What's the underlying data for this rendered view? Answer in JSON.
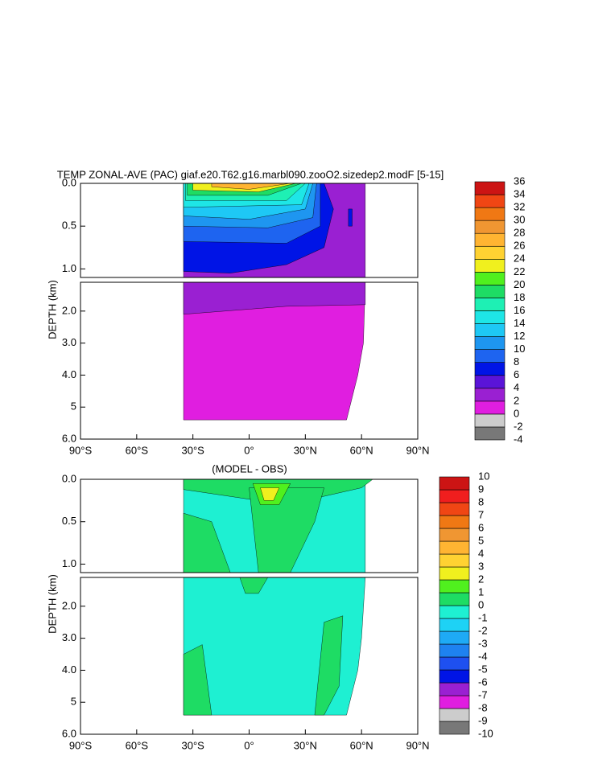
{
  "chart_data": [
    {
      "type": "contour",
      "title": "TEMP ZONAL-AVE (PAC) giaf.e20.T62.g16.marbl090.zooO2.sizedep2.modF [5-15]",
      "ylabel": "DEPTH (km)",
      "xlim": [
        -90,
        90
      ],
      "xticks": [
        {
          "value": -90,
          "label": "90°S"
        },
        {
          "value": -60,
          "label": "60°S"
        },
        {
          "value": -30,
          "label": "30°S"
        },
        {
          "value": 0,
          "label": "0°"
        },
        {
          "value": 30,
          "label": "30°N"
        },
        {
          "value": 60,
          "label": "60°N"
        },
        {
          "value": 90,
          "label": "90°N"
        }
      ],
      "panels": [
        {
          "ylim": [
            0,
            1.1
          ],
          "yticks": [
            {
              "value": 0,
              "label": "0.0"
            },
            0.5,
            {
              "value": 1,
              "label": "1.0"
            }
          ]
        },
        {
          "ylim": [
            1.1,
            6
          ],
          "yticks": [
            {
              "value": 2,
              "label": "2.0"
            },
            {
              "value": 3,
              "label": "3.0"
            },
            {
              "value": 4,
              "label": "4.0"
            },
            5,
            {
              "value": 6,
              "label": "6.0"
            }
          ]
        }
      ],
      "levels": [
        -4,
        -2,
        0,
        2,
        4,
        6,
        8,
        10,
        12,
        14,
        16,
        18,
        20,
        22,
        24,
        26,
        28,
        30,
        32,
        34,
        36
      ],
      "colors": [
        "#787878",
        "#cccccc",
        "#e01ee0",
        "#9a20d2",
        "#5a14d8",
        "#0014e6",
        "#1e64f0",
        "#1e96f0",
        "#1ec8f5",
        "#1ee6e6",
        "#1ef0b4",
        "#1edc64",
        "#50f01e",
        "#f0f01e",
        "#ffd232",
        "#ffb432",
        "#f09632",
        "#f07814",
        "#f04614",
        "#cc1414"
      ]
    },
    {
      "type": "contour",
      "title": "(MODEL - OBS)",
      "ylabel": "DEPTH (km)",
      "xlim": [
        -90,
        90
      ],
      "xticks": [
        {
          "value": -90,
          "label": "90°S"
        },
        {
          "value": -60,
          "label": "60°S"
        },
        {
          "value": -30,
          "label": "30°S"
        },
        {
          "value": 0,
          "label": "0°"
        },
        {
          "value": 30,
          "label": "30°N"
        },
        {
          "value": 60,
          "label": "60°N"
        },
        {
          "value": 90,
          "label": "90°N"
        }
      ],
      "panels": [
        {
          "ylim": [
            0,
            1.1
          ],
          "yticks": [
            {
              "value": 0,
              "label": "0.0"
            },
            0.5,
            {
              "value": 1,
              "label": "1.0"
            }
          ]
        },
        {
          "ylim": [
            1.1,
            6
          ],
          "yticks": [
            {
              "value": 2,
              "label": "2.0"
            },
            {
              "value": 3,
              "label": "3.0"
            },
            {
              "value": 4,
              "label": "4.0"
            },
            5,
            {
              "value": 6,
              "label": "6.0"
            }
          ]
        }
      ],
      "levels": [
        -10,
        -9,
        -8,
        -7,
        -6,
        -5,
        -4,
        -3,
        -2,
        -1,
        0,
        1,
        2,
        3,
        4,
        5,
        6,
        7,
        8,
        9,
        10
      ],
      "colors": [
        "#787878",
        "#cccccc",
        "#e01ee0",
        "#9a20d2",
        "#0014e6",
        "#1e50f0",
        "#1e82f0",
        "#1eaaf5",
        "#1ed2f5",
        "#1ef0d2",
        "#1edc64",
        "#50f01e",
        "#f0f01e",
        "#ffd232",
        "#ffb432",
        "#f09632",
        "#f07814",
        "#f04614",
        "#f01e1e",
        "#cc1414"
      ]
    }
  ]
}
